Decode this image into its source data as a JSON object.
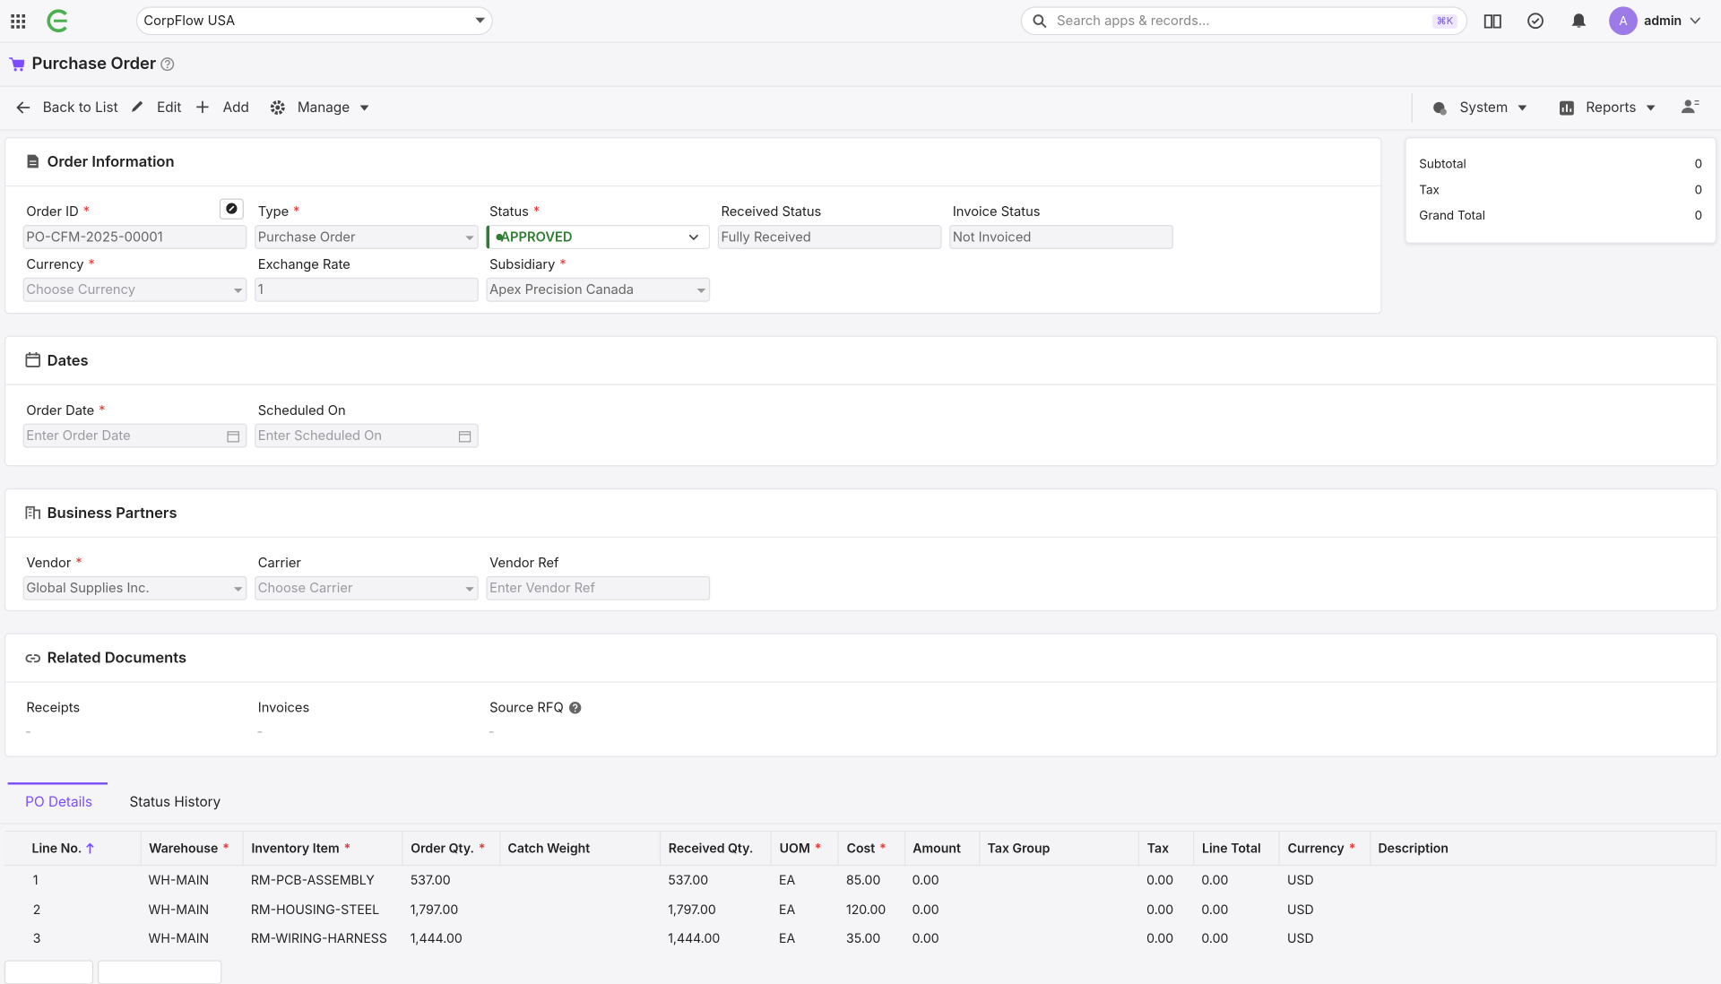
{
  "topbar": {
    "company": "CorpFlow USA",
    "search_placeholder": "Search apps & records...",
    "shortcut": "⌘K",
    "avatar": "A",
    "user": "admin"
  },
  "page": {
    "title": "Purchase Order"
  },
  "toolbar": {
    "back": "Back to List",
    "edit": "Edit",
    "add": "Add",
    "manage": "Manage",
    "system": "System",
    "reports": "Reports"
  },
  "summary": [
    {
      "label": "Subtotal",
      "value": 0
    },
    {
      "label": "Tax",
      "value": 0
    },
    {
      "label": "Grand Total",
      "value": 0
    }
  ],
  "sections": [
    {
      "title": "Order Information",
      "fields": [
        {
          "label": "Order ID",
          "required": true,
          "control": "text",
          "value": "PO-CFM-2025-00001"
        },
        {
          "label": "Type",
          "required": true,
          "control": "select",
          "value": "Purchase Order"
        },
        {
          "label": "Status",
          "required": true,
          "control": "status",
          "value": "APPROVED"
        },
        {
          "label": "Received Status",
          "required": false,
          "control": "text",
          "value": "Fully Received"
        },
        {
          "label": "Invoice Status",
          "required": false,
          "control": "text",
          "value": "Not Invoiced"
        },
        {
          "label": "Currency",
          "required": true,
          "control": "select",
          "placeholder": "Choose Currency"
        },
        {
          "label": "Exchange Rate",
          "required": false,
          "control": "text",
          "value": "1"
        },
        {
          "label": "Subsidiary",
          "required": true,
          "control": "select",
          "value": "Apex Precision Canada"
        }
      ]
    },
    {
      "title": "Dates",
      "fields": [
        {
          "label": "Order Date",
          "required": true,
          "control": "date",
          "placeholder": "Enter Order Date"
        },
        {
          "label": "Scheduled On",
          "required": false,
          "control": "date",
          "placeholder": "Enter Scheduled On"
        }
      ]
    },
    {
      "title": "Business Partners",
      "fields": [
        {
          "label": "Vendor",
          "required": true,
          "control": "select",
          "value": "Global Supplies Inc."
        },
        {
          "label": "Carrier",
          "required": false,
          "control": "select",
          "placeholder": "Choose Carrier"
        },
        {
          "label": "Vendor Ref",
          "required": false,
          "control": "text",
          "placeholder": "Enter Vendor Ref"
        }
      ]
    },
    {
      "title": "Related Documents",
      "fields": [
        {
          "label": "Receipts",
          "required": false,
          "control": "plain",
          "value": "-"
        },
        {
          "label": "Invoices",
          "required": false,
          "control": "plain",
          "value": "-"
        },
        {
          "label": "Source RFQ",
          "required": false,
          "control": "plain",
          "value": "-",
          "help": true
        }
      ]
    }
  ],
  "tabs": {
    "items": [
      "PO Details",
      "Status History"
    ],
    "active": 0
  },
  "table": {
    "columns": [
      {
        "name": "Line No.",
        "sorted": "asc"
      },
      {
        "name": "Warehouse",
        "required": true
      },
      {
        "name": "Inventory Item",
        "required": true
      },
      {
        "name": "Order Qty.",
        "required": true
      },
      {
        "name": "Catch Weight"
      },
      {
        "name": "Received Qty."
      },
      {
        "name": "UOM",
        "required": true
      },
      {
        "name": "Cost",
        "required": true
      },
      {
        "name": "Amount"
      },
      {
        "name": "Tax Group"
      },
      {
        "name": "Tax"
      },
      {
        "name": "Line Total"
      },
      {
        "name": "Currency",
        "required": true
      },
      {
        "name": "Description"
      }
    ],
    "rows": [
      [
        "1",
        "WH-MAIN",
        "RM-PCB-ASSEMBLY",
        "537.00",
        "",
        "537.00",
        "EA",
        "85.00",
        "0.00",
        "",
        "0.00",
        "0.00",
        "USD",
        ""
      ],
      [
        "2",
        "WH-MAIN",
        "RM-HOUSING-STEEL",
        "1,797.00",
        "",
        "1,797.00",
        "EA",
        "120.00",
        "0.00",
        "",
        "0.00",
        "0.00",
        "USD",
        ""
      ],
      [
        "3",
        "WH-MAIN",
        "RM-WIRING-HARNESS",
        "1,444.00",
        "",
        "1,444.00",
        "EA",
        "35.00",
        "0.00",
        "",
        "0.00",
        "0.00",
        "USD",
        ""
      ]
    ]
  }
}
